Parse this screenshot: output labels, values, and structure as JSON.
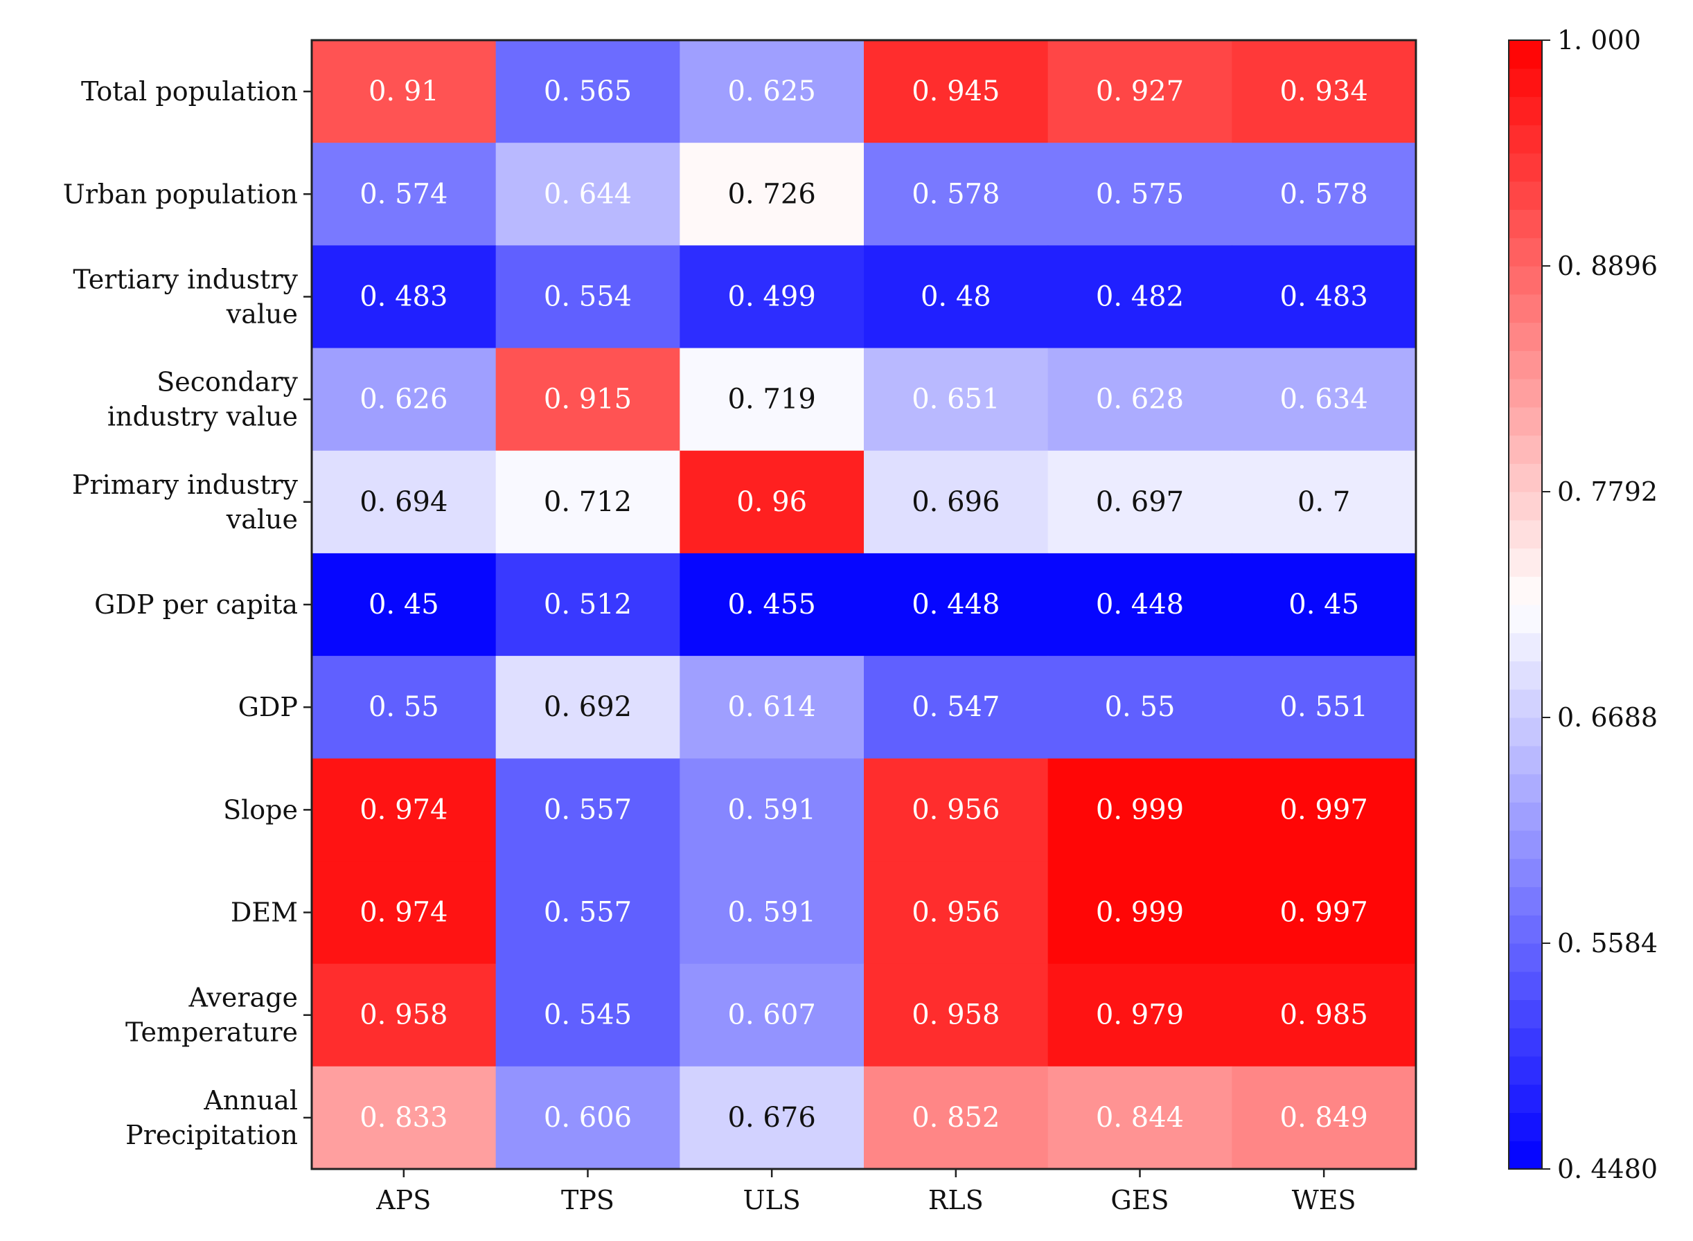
{
  "chart_data": {
    "type": "heatmap",
    "columns": [
      "APS",
      "TPS",
      "ULS",
      "RLS",
      "GES",
      "WES"
    ],
    "rows": [
      {
        "label": [
          "Total population"
        ],
        "values": [
          "0.91",
          "0.565",
          "0.625",
          "0.945",
          "0.927",
          "0.934"
        ]
      },
      {
        "label": [
          "Urban population"
        ],
        "values": [
          "0.574",
          "0.644",
          "0.726",
          "0.578",
          "0.575",
          "0.578"
        ]
      },
      {
        "label": [
          "Tertiary industry",
          "value"
        ],
        "values": [
          "0.483",
          "0.554",
          "0.499",
          "0.48",
          "0.482",
          "0.483"
        ]
      },
      {
        "label": [
          "Secondary",
          "industry value"
        ],
        "values": [
          "0.626",
          "0.915",
          "0.719",
          "0.651",
          "0.628",
          "0.634"
        ]
      },
      {
        "label": [
          "Primary industry",
          "value"
        ],
        "values": [
          "0.694",
          "0.712",
          "0.96",
          "0.696",
          "0.697",
          "0.7"
        ]
      },
      {
        "label": [
          "GDP per capita"
        ],
        "values": [
          "0.45",
          "0.512",
          "0.455",
          "0.448",
          "0.448",
          "0.45"
        ]
      },
      {
        "label": [
          "GDP"
        ],
        "values": [
          "0.55",
          "0.692",
          "0.614",
          "0.547",
          "0.55",
          "0.551"
        ]
      },
      {
        "label": [
          "Slope"
        ],
        "values": [
          "0.974",
          "0.557",
          "0.591",
          "0.956",
          "0.999",
          "0.997"
        ]
      },
      {
        "label": [
          "DEM"
        ],
        "values": [
          "0.974",
          "0.557",
          "0.591",
          "0.956",
          "0.999",
          "0.997"
        ]
      },
      {
        "label": [
          "Average",
          "Temperature"
        ],
        "values": [
          "0.958",
          "0.545",
          "0.607",
          "0.958",
          "0.979",
          "0.985"
        ]
      },
      {
        "label": [
          "Annual",
          "Precipitation"
        ],
        "values": [
          "0.833",
          "0.606",
          "0.676",
          "0.852",
          "0.844",
          "0.849"
        ]
      }
    ],
    "colorbar": {
      "min": 0.448,
      "max": 1.0,
      "levels": 40,
      "ticks": [
        "1.000",
        "0.8896",
        "0.7792",
        "0.6688",
        "0.5584",
        "0.4480"
      ],
      "colors": {
        "low": "#0000ff",
        "mid": "#ffffff",
        "high": "#ff0000"
      }
    }
  }
}
